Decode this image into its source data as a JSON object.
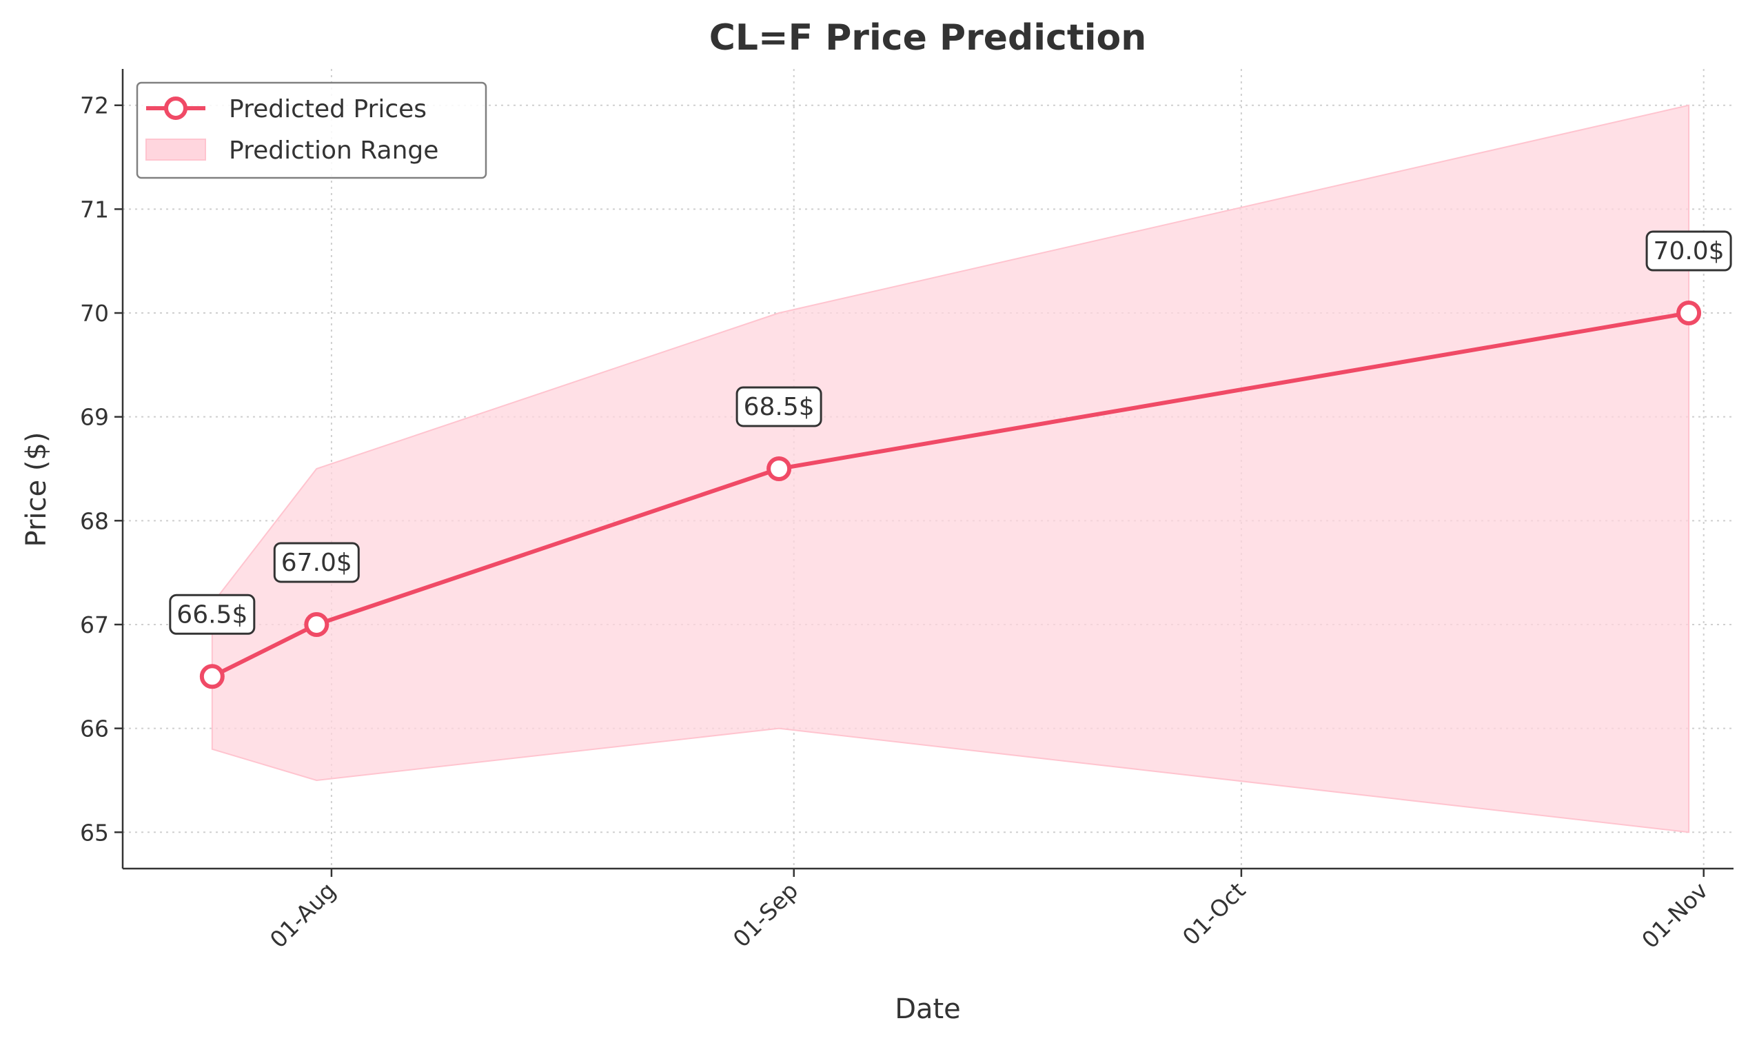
{
  "chart_data": {
    "type": "line",
    "title": "CL=F Price Prediction",
    "xlabel": "Date",
    "ylabel": "Price ($)",
    "x": [
      "2024-07-24",
      "2024-07-31",
      "2024-08-31",
      "2024-10-31"
    ],
    "x_ticks": [
      "2024-08-01",
      "2024-09-01",
      "2024-10-01",
      "2024-11-01"
    ],
    "x_tick_labels": [
      "01-Aug",
      "01-Sep",
      "01-Oct",
      "01-Nov"
    ],
    "xlim": [
      "2024-07-18",
      "2024-11-03"
    ],
    "y_ticks": [
      65,
      66,
      67,
      68,
      69,
      70,
      71,
      72
    ],
    "ylim": [
      64.65,
      72.35
    ],
    "grid": true,
    "legend_position": "top-left",
    "series": [
      {
        "name": "Predicted Prices",
        "values": [
          66.5,
          67.0,
          68.5,
          70.0
        ],
        "data_labels": [
          "66.5$",
          "67.0$",
          "68.5$",
          "70.0$"
        ],
        "color": "#f04a66"
      }
    ],
    "range": {
      "name": "Prediction Range",
      "lower": [
        65.8,
        65.5,
        66.0,
        65.0
      ],
      "upper": [
        67.2,
        68.5,
        70.0,
        72.0
      ],
      "color": "#ffd6de"
    }
  }
}
